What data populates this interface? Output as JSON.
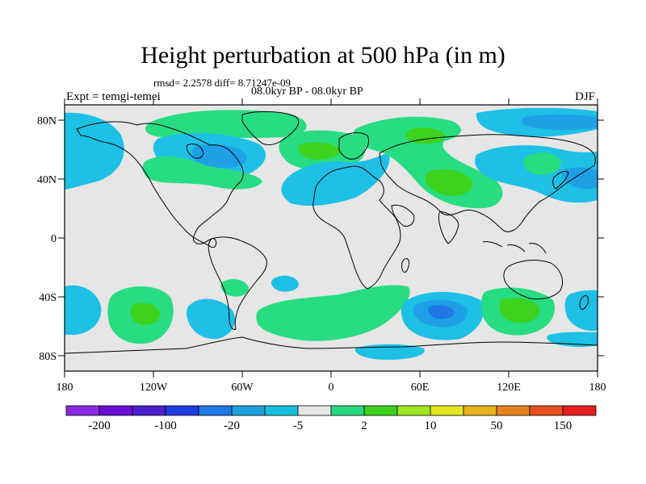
{
  "figure": {
    "title": "Height perturbation at 500 hPa (in m)",
    "stats": "rmsd= 2.2578 diff= 8.71247e-09",
    "period": "08.0kyr BP - 08.0kyr BP",
    "experiment": "Expt = temgi-temei",
    "season": "DJF"
  },
  "axes": {
    "lat_ticks": [
      "80N",
      "40N",
      "0",
      "40S",
      "80S"
    ],
    "lon_ticks": [
      "180",
      "120W",
      "60W",
      "0",
      "60E",
      "120E",
      "180"
    ]
  },
  "colorbar": {
    "labels": [
      "-200",
      "-100",
      "-20",
      "-5",
      "2",
      "10",
      "50",
      "150"
    ],
    "colors": [
      "#8a2be2",
      "#6a0dd6",
      "#4a1fd0",
      "#1e3ce0",
      "#1f78e8",
      "#1ea0dc",
      "#18c0e0",
      "#e6e6e6",
      "#28d880",
      "#3cd21e",
      "#a0e61e",
      "#e6e61e",
      "#e6b41e",
      "#e6821e",
      "#e6501e",
      "#e61e1e"
    ]
  },
  "colors": {
    "background_field": "#e6e6e6",
    "light_blue": "#1ec0e6",
    "mid_blue": "#1ea0e6",
    "dark_blue": "#1e78e6",
    "light_green": "#28dc82",
    "mid_green": "#3cd21e"
  }
}
